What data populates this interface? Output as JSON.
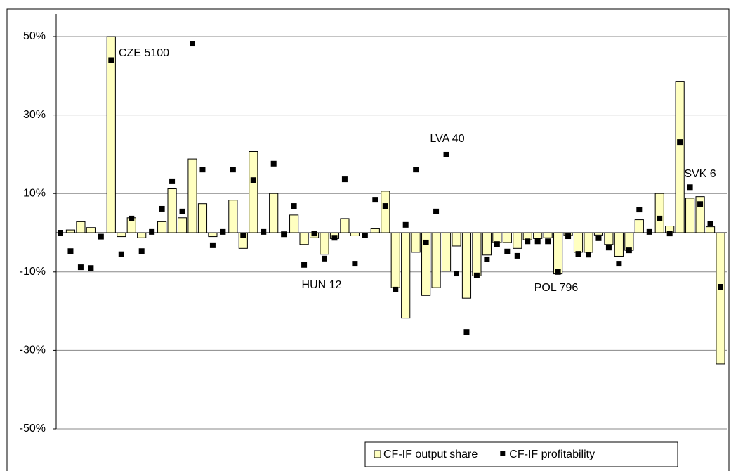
{
  "chart_data": {
    "type": "bar",
    "categories": [
      null,
      null,
      null,
      null,
      null,
      null,
      null,
      null,
      null,
      null,
      null,
      null,
      null,
      null,
      null,
      null,
      null,
      null,
      null,
      null,
      null,
      null,
      null,
      null,
      null,
      null,
      null,
      null,
      null,
      null,
      null,
      null,
      null,
      null,
      null,
      null,
      null,
      null,
      null,
      null,
      null,
      null,
      null,
      null,
      null,
      null,
      null,
      null,
      null,
      null,
      null,
      null,
      null,
      null,
      null,
      null,
      null,
      null,
      null,
      null,
      null,
      null,
      null,
      null,
      null,
      null
    ],
    "series": [
      {
        "name": "CF-IF output share",
        "type": "bar",
        "color": "#ffffc0",
        "values": [
          0,
          0.7,
          2.8,
          1.3,
          0,
          50,
          -1,
          3.8,
          -1.3,
          0,
          2.8,
          11.2,
          3.8,
          18.8,
          7.4,
          -1,
          0,
          8.3,
          -4,
          20.7,
          0,
          10,
          0,
          4.5,
          -3,
          -1.3,
          -5.5,
          -1.5,
          3.6,
          -0.8,
          0,
          1,
          10.6,
          -14,
          -21.8,
          -5,
          -16,
          -14,
          -9.8,
          -3.4,
          -16.7,
          -11,
          -5.7,
          -2.5,
          -2.5,
          -4,
          -1.8,
          -1.5,
          -1.3,
          -10.5,
          -0.7,
          -5,
          -5,
          -0.6,
          -3,
          -6,
          -4.5,
          3.3,
          0,
          10,
          1.7,
          38.6,
          8.8,
          9.2,
          1.5,
          -33.5
        ]
      },
      {
        "name": "CF-IF profitability",
        "type": "scatter",
        "color": "#000000",
        "values": [
          0,
          -4.7,
          -8.8,
          -9,
          -1,
          44,
          -5.5,
          3.6,
          -4.7,
          0.2,
          6.1,
          13.1,
          5.4,
          48.2,
          16.1,
          -3.2,
          0.2,
          16.1,
          -0.7,
          13.4,
          0.2,
          17.6,
          -0.4,
          6.8,
          -8.2,
          -0.2,
          -6.6,
          -1.3,
          13.6,
          -7.9,
          -0.7,
          8.4,
          6.8,
          -14.5,
          2,
          16.1,
          -2.5,
          5.4,
          19.9,
          -10.4,
          -25.3,
          -10.9,
          -6.8,
          -2.9,
          -4.8,
          -5.9,
          -2.2,
          -2.2,
          -2.2,
          -10,
          -0.9,
          -5.4,
          -5.6,
          -1.4,
          -3.8,
          -7.9,
          -4.5,
          5.9,
          0.2,
          3.6,
          -0.2,
          23.1,
          11.6,
          7.3,
          2.3,
          -13.8
        ]
      }
    ],
    "annotations": [
      "CZE 5100",
      "HUN 12",
      "LVA 40",
      "POL 796",
      "SVK 6"
    ],
    "ylim": [
      -50,
      50
    ],
    "yticks": [
      {
        "value": -50,
        "label": "-50%"
      },
      {
        "value": -30,
        "label": "-30%"
      },
      {
        "value": -10,
        "label": "-10%"
      },
      {
        "value": 10,
        "label": "10%"
      },
      {
        "value": 30,
        "label": "30%"
      },
      {
        "value": 50,
        "label": "50%"
      }
    ],
    "grid": true,
    "legend": "bottom"
  }
}
